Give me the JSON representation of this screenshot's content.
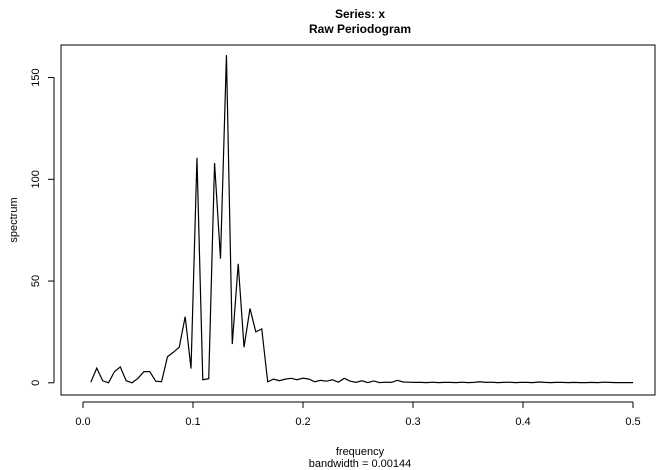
{
  "chart_data": {
    "type": "line",
    "title": "Series: x",
    "subtitle": "Raw Periodogram",
    "xlabel": "frequency",
    "xlabel_note": "bandwidth = 0.00144",
    "ylabel": "spectrum",
    "xlim": [
      -0.02,
      0.52
    ],
    "ylim": [
      -6,
      166
    ],
    "x_ticks": [
      {
        "value": 0.0,
        "label": "0.0"
      },
      {
        "value": 0.1,
        "label": "0.1"
      },
      {
        "value": 0.2,
        "label": "0.2"
      },
      {
        "value": 0.3,
        "label": "0.3"
      },
      {
        "value": 0.4,
        "label": "0.4"
      },
      {
        "value": 0.5,
        "label": "0.5"
      }
    ],
    "y_ticks": [
      {
        "value": 0,
        "label": "0"
      },
      {
        "value": 50,
        "label": "50"
      },
      {
        "value": 100,
        "label": "100"
      },
      {
        "value": 150,
        "label": "150"
      }
    ],
    "grid": false,
    "series": [
      {
        "color": "#000000",
        "points": [
          [
            0.0071,
            0.3
          ],
          [
            0.0125,
            7.2
          ],
          [
            0.0179,
            1.0
          ],
          [
            0.0232,
            0.0
          ],
          [
            0.0286,
            5.5
          ],
          [
            0.0339,
            7.8
          ],
          [
            0.0393,
            1.0
          ],
          [
            0.0446,
            0.0
          ],
          [
            0.05,
            2.2
          ],
          [
            0.0554,
            5.5
          ],
          [
            0.0607,
            5.5
          ],
          [
            0.0661,
            0.8
          ],
          [
            0.0714,
            0.5
          ],
          [
            0.0768,
            12.8
          ],
          [
            0.0821,
            15.0
          ],
          [
            0.0875,
            17.5
          ],
          [
            0.0929,
            32.5
          ],
          [
            0.0982,
            7.0
          ],
          [
            0.1036,
            110.5
          ],
          [
            0.1089,
            1.5
          ],
          [
            0.1143,
            2.0
          ],
          [
            0.1196,
            108.0
          ],
          [
            0.125,
            61.0
          ],
          [
            0.1304,
            161.0
          ],
          [
            0.1357,
            19.0
          ],
          [
            0.1411,
            58.5
          ],
          [
            0.1464,
            17.5
          ],
          [
            0.1518,
            36.5
          ],
          [
            0.1571,
            25.0
          ],
          [
            0.1625,
            26.5
          ],
          [
            0.1679,
            0.5
          ],
          [
            0.1732,
            1.8
          ],
          [
            0.1786,
            1.0
          ],
          [
            0.1839,
            1.8
          ],
          [
            0.1893,
            2.2
          ],
          [
            0.1946,
            1.5
          ],
          [
            0.2,
            2.3
          ],
          [
            0.2054,
            1.8
          ],
          [
            0.2107,
            0.5
          ],
          [
            0.2161,
            1.2
          ],
          [
            0.2214,
            0.8
          ],
          [
            0.2268,
            1.5
          ],
          [
            0.2321,
            0.3
          ],
          [
            0.2375,
            2.2
          ],
          [
            0.2429,
            0.8
          ],
          [
            0.2482,
            0.2
          ],
          [
            0.2536,
            1.0
          ],
          [
            0.2589,
            0.1
          ],
          [
            0.2643,
            0.9
          ],
          [
            0.2696,
            0.1
          ],
          [
            0.275,
            0.3
          ],
          [
            0.2804,
            0.2
          ],
          [
            0.2857,
            1.2
          ],
          [
            0.2911,
            0.4
          ],
          [
            0.2964,
            0.3
          ],
          [
            0.3018,
            0.2
          ],
          [
            0.3071,
            0.2
          ],
          [
            0.3125,
            0.1
          ],
          [
            0.3179,
            0.3
          ],
          [
            0.3232,
            0.1
          ],
          [
            0.3286,
            0.2
          ],
          [
            0.3339,
            0.2
          ],
          [
            0.3393,
            0.1
          ],
          [
            0.3446,
            0.3
          ],
          [
            0.35,
            0.1
          ],
          [
            0.3554,
            0.2
          ],
          [
            0.3607,
            0.5
          ],
          [
            0.3661,
            0.2
          ],
          [
            0.3714,
            0.3
          ],
          [
            0.3768,
            0.1
          ],
          [
            0.3821,
            0.2
          ],
          [
            0.3875,
            0.3
          ],
          [
            0.3929,
            0.1
          ],
          [
            0.3982,
            0.2
          ],
          [
            0.4036,
            0.2
          ],
          [
            0.4089,
            0.1
          ],
          [
            0.4143,
            0.4
          ],
          [
            0.4196,
            0.2
          ],
          [
            0.425,
            0.1
          ],
          [
            0.4304,
            0.2
          ],
          [
            0.4357,
            0.2
          ],
          [
            0.4411,
            0.1
          ],
          [
            0.4464,
            0.2
          ],
          [
            0.4518,
            0.1
          ],
          [
            0.4571,
            0.1
          ],
          [
            0.4625,
            0.2
          ],
          [
            0.4679,
            0.1
          ],
          [
            0.4732,
            0.3
          ],
          [
            0.4786,
            0.2
          ],
          [
            0.4839,
            0.1
          ],
          [
            0.4893,
            0.1
          ],
          [
            0.4946,
            0.1
          ],
          [
            0.5,
            0.1
          ]
        ]
      }
    ]
  }
}
